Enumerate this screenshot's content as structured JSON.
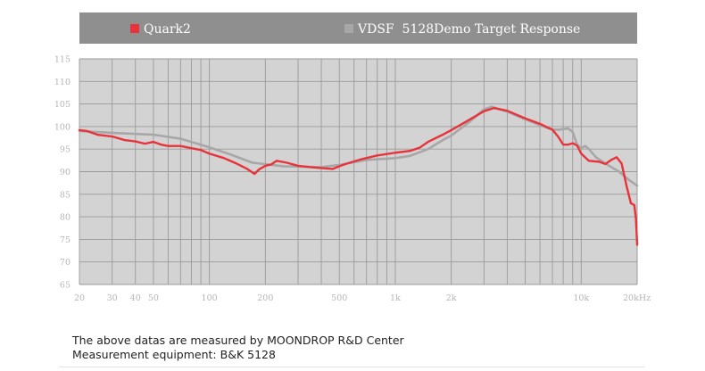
{
  "chart_data": {
    "type": "line",
    "title": "",
    "xlabel": "",
    "ylabel": "",
    "x_scale": "log",
    "xlim": [
      20,
      20000
    ],
    "ylim": [
      65,
      115
    ],
    "y_ticks": [
      65,
      70,
      75,
      80,
      85,
      90,
      95,
      100,
      105,
      110,
      115
    ],
    "x_ticks": [
      {
        "value": 20,
        "label": "20"
      },
      {
        "value": 30,
        "label": "30"
      },
      {
        "value": 40,
        "label": "40"
      },
      {
        "value": 50,
        "label": "50"
      },
      {
        "value": 100,
        "label": "100"
      },
      {
        "value": 200,
        "label": "200"
      },
      {
        "value": 500,
        "label": "500"
      },
      {
        "value": 1000,
        "label": "1k"
      },
      {
        "value": 2000,
        "label": "2k"
      },
      {
        "value": 10000,
        "label": "10k"
      },
      {
        "value": 20000,
        "label": "20kHz"
      }
    ],
    "grid": true,
    "legend_position": "top",
    "colors": {
      "header_bg": "#8f8f8f",
      "plot_bg": "#d3d3d3",
      "grid": "#9a9a9a",
      "tick_text": "#b5b5b5"
    },
    "series": [
      {
        "name": "Quark2",
        "color": "#e8333a",
        "points": [
          [
            20,
            99.2
          ],
          [
            22,
            99.0
          ],
          [
            25,
            98.2
          ],
          [
            30,
            97.8
          ],
          [
            35,
            97.0
          ],
          [
            40,
            96.7
          ],
          [
            45,
            96.2
          ],
          [
            50,
            96.6
          ],
          [
            55,
            96.0
          ],
          [
            60,
            95.7
          ],
          [
            70,
            95.7
          ],
          [
            80,
            95.2
          ],
          [
            90,
            94.8
          ],
          [
            100,
            94.0
          ],
          [
            120,
            93.0
          ],
          [
            140,
            91.8
          ],
          [
            160,
            90.6
          ],
          [
            175,
            89.5
          ],
          [
            185,
            90.5
          ],
          [
            200,
            91.3
          ],
          [
            215,
            91.6
          ],
          [
            230,
            92.4
          ],
          [
            260,
            92.0
          ],
          [
            300,
            91.3
          ],
          [
            350,
            91.0
          ],
          [
            400,
            90.8
          ],
          [
            460,
            90.6
          ],
          [
            500,
            91.2
          ],
          [
            550,
            91.8
          ],
          [
            650,
            92.7
          ],
          [
            800,
            93.6
          ],
          [
            1000,
            94.2
          ],
          [
            1200,
            94.6
          ],
          [
            1350,
            95.3
          ],
          [
            1500,
            96.6
          ],
          [
            1800,
            98.2
          ],
          [
            2000,
            99.2
          ],
          [
            2500,
            101.5
          ],
          [
            3000,
            103.4
          ],
          [
            3400,
            104.1
          ],
          [
            4000,
            103.5
          ],
          [
            5000,
            101.8
          ],
          [
            6000,
            100.6
          ],
          [
            7000,
            99.3
          ],
          [
            7500,
            97.8
          ],
          [
            8000,
            96.0
          ],
          [
            8500,
            96.0
          ],
          [
            9000,
            96.3
          ],
          [
            9500,
            95.8
          ],
          [
            10000,
            94.0
          ],
          [
            11000,
            92.4
          ],
          [
            12500,
            92.2
          ],
          [
            13500,
            91.7
          ],
          [
            14500,
            92.6
          ],
          [
            15500,
            93.2
          ],
          [
            16500,
            91.8
          ],
          [
            17500,
            87.0
          ],
          [
            18500,
            83.0
          ],
          [
            19300,
            82.6
          ],
          [
            19700,
            79.5
          ],
          [
            20000,
            73.8
          ]
        ]
      },
      {
        "name": "VDSF  5128Demo Target Response",
        "color": "#a7a7a7",
        "points": [
          [
            20,
            99.0
          ],
          [
            30,
            98.6
          ],
          [
            50,
            98.2
          ],
          [
            70,
            97.3
          ],
          [
            100,
            95.4
          ],
          [
            130,
            93.8
          ],
          [
            170,
            92.0
          ],
          [
            250,
            91.2
          ],
          [
            400,
            91.0
          ],
          [
            500,
            91.5
          ],
          [
            700,
            92.6
          ],
          [
            1000,
            93.0
          ],
          [
            1200,
            93.5
          ],
          [
            1500,
            95.0
          ],
          [
            1800,
            97.0
          ],
          [
            2000,
            98.0
          ],
          [
            2500,
            101.0
          ],
          [
            3000,
            103.8
          ],
          [
            3300,
            104.4
          ],
          [
            4000,
            103.3
          ],
          [
            5000,
            101.6
          ],
          [
            6000,
            100.3
          ],
          [
            7000,
            99.3
          ],
          [
            7600,
            99.3
          ],
          [
            8500,
            99.6
          ],
          [
            9000,
            98.8
          ],
          [
            9500,
            96.0
          ],
          [
            10000,
            95.2
          ],
          [
            10500,
            95.7
          ],
          [
            11000,
            95.0
          ],
          [
            12000,
            93.2
          ],
          [
            14000,
            91.4
          ],
          [
            16000,
            90.0
          ],
          [
            18000,
            88.2
          ],
          [
            20000,
            86.9
          ]
        ]
      }
    ]
  },
  "footer": {
    "line1": "The above datas are measured by MOONDROP R&D Center",
    "line2": "Measurement equipment: B&K 5128"
  }
}
